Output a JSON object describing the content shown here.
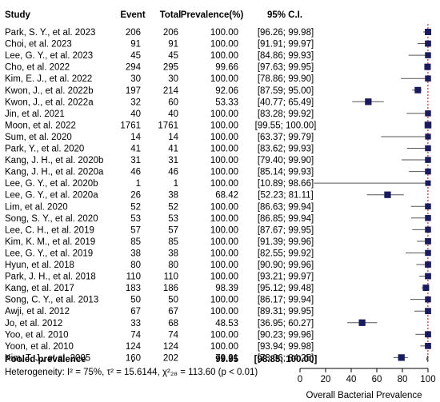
{
  "chart_data": {
    "type": "forest",
    "columns": {
      "study": "Study",
      "event": "Event",
      "total": "Total",
      "prevalence": "Prevalence(%)",
      "ci": "95% C.I."
    },
    "rows": [
      {
        "study": "Park, S. Y., et al. 2023",
        "event": "206",
        "total": "206",
        "prevalence": "100.00",
        "ci": "[96.26; 99.98]",
        "est": 100.0,
        "lo": 96.26,
        "hi": 99.98,
        "size": 0.8
      },
      {
        "study": "Choi, et al. 2023",
        "event": "91",
        "total": "91",
        "prevalence": "100.00",
        "ci": "[91.91; 99.97]",
        "est": 100.0,
        "lo": 91.91,
        "hi": 99.97,
        "size": 0.75
      },
      {
        "study": "Lee, G. Y., et al. 2023",
        "event": "45",
        "total": "45",
        "prevalence": "100.00",
        "ci": "[84.86; 99.93]",
        "est": 100.0,
        "lo": 84.86,
        "hi": 99.93,
        "size": 0.7
      },
      {
        "study": "Cho, et al. 2022",
        "event": "294",
        "total": "295",
        "prevalence": "99.66",
        "ci": "[97.63; 99.95]",
        "est": 99.66,
        "lo": 97.63,
        "hi": 99.95,
        "size": 0.8
      },
      {
        "study": "Kim, E. J., et al. 2022",
        "event": "30",
        "total": "30",
        "prevalence": "100.00",
        "ci": "[78.86; 99.90]",
        "est": 100.0,
        "lo": 78.86,
        "hi": 99.9,
        "size": 0.7
      },
      {
        "study": "Kwon, J., et al. 2022b",
        "event": "197",
        "total": "214",
        "prevalence": "92.06",
        "ci": "[87.59; 95.00]",
        "est": 92.06,
        "lo": 87.59,
        "hi": 95.0,
        "size": 0.8
      },
      {
        "study": "Kwon, J., et al. 2022a",
        "event": "32",
        "total": "60",
        "prevalence": "53.33",
        "ci": "[40.77; 65.49]",
        "est": 53.33,
        "lo": 40.77,
        "hi": 65.49,
        "size": 0.85
      },
      {
        "study": "Jin, et al. 2021",
        "event": "40",
        "total": "40",
        "prevalence": "100.00",
        "ci": "[83.28; 99.92]",
        "est": 100.0,
        "lo": 83.28,
        "hi": 99.92,
        "size": 0.7
      },
      {
        "study": "Moon, et al. 2022",
        "event": "1761",
        "total": "1761",
        "prevalence": "100.00",
        "ci": "[99.55; 100.00]",
        "est": 100.0,
        "lo": 99.55,
        "hi": 100.0,
        "size": 0.9
      },
      {
        "study": "Sum, et al. 2020",
        "event": "14",
        "total": "14",
        "prevalence": "100.00",
        "ci": "[63.37; 99.79]",
        "est": 100.0,
        "lo": 63.37,
        "hi": 99.79,
        "size": 0.65
      },
      {
        "study": "Park, Y., et al. 2020",
        "event": "41",
        "total": "41",
        "prevalence": "100.00",
        "ci": "[83.62; 99.93]",
        "est": 100.0,
        "lo": 83.62,
        "hi": 99.93,
        "size": 0.7
      },
      {
        "study": "Kang, J. H., et al. 2020b",
        "event": "31",
        "total": "31",
        "prevalence": "100.00",
        "ci": "[79.40; 99.90]",
        "est": 100.0,
        "lo": 79.4,
        "hi": 99.9,
        "size": 0.7
      },
      {
        "study": "Kang, J. H., et al. 2020a",
        "event": "46",
        "total": "46",
        "prevalence": "100.00",
        "ci": "[85.14; 99.93]",
        "est": 100.0,
        "lo": 85.14,
        "hi": 99.93,
        "size": 0.7
      },
      {
        "study": "Lee, G. Y., et al. 2020b",
        "event": "1",
        "total": "1",
        "prevalence": "100.00",
        "ci": "[10.89; 98.66]",
        "est": 100.0,
        "lo": 10.89,
        "hi": 98.66,
        "size": 0.6
      },
      {
        "study": "Lee, G. Y., et al. 2020a",
        "event": "26",
        "total": "38",
        "prevalence": "68.42",
        "ci": "[52.23; 81.11]",
        "est": 68.42,
        "lo": 52.23,
        "hi": 81.11,
        "size": 0.85
      },
      {
        "study": "Lim, et al. 2020",
        "event": "52",
        "total": "52",
        "prevalence": "100.00",
        "ci": "[86.63; 99.94]",
        "est": 100.0,
        "lo": 86.63,
        "hi": 99.94,
        "size": 0.7
      },
      {
        "study": "Song, S. Y., et al. 2020",
        "event": "53",
        "total": "53",
        "prevalence": "100.00",
        "ci": "[86.85; 99.94]",
        "est": 100.0,
        "lo": 86.85,
        "hi": 99.94,
        "size": 0.7
      },
      {
        "study": "Lee, C. H., et al. 2019",
        "event": "57",
        "total": "57",
        "prevalence": "100.00",
        "ci": "[87.67; 99.95]",
        "est": 100.0,
        "lo": 87.67,
        "hi": 99.95,
        "size": 0.7
      },
      {
        "study": "Kim, K. M., et al. 2019",
        "event": "85",
        "total": "85",
        "prevalence": "100.00",
        "ci": "[91.39; 99.96]",
        "est": 100.0,
        "lo": 91.39,
        "hi": 99.96,
        "size": 0.75
      },
      {
        "study": "Lee, G. Y., et al. 2019",
        "event": "38",
        "total": "38",
        "prevalence": "100.00",
        "ci": "[82.55; 99.92]",
        "est": 100.0,
        "lo": 82.55,
        "hi": 99.92,
        "size": 0.7
      },
      {
        "study": "Hyun, et al. 2018",
        "event": "80",
        "total": "80",
        "prevalence": "100.00",
        "ci": "[90.90; 99.96]",
        "est": 100.0,
        "lo": 90.9,
        "hi": 99.96,
        "size": 0.75
      },
      {
        "study": "Park, J. H., et al. 2018",
        "event": "110",
        "total": "110",
        "prevalence": "100.00",
        "ci": "[93.21; 99.97]",
        "est": 100.0,
        "lo": 93.21,
        "hi": 99.97,
        "size": 0.75
      },
      {
        "study": "Kang, et al. 2017",
        "event": "183",
        "total": "186",
        "prevalence": "98.39",
        "ci": "[95.12; 99.48]",
        "est": 98.39,
        "lo": 95.12,
        "hi": 99.48,
        "size": 0.8
      },
      {
        "study": "Song, C. Y., et al. 2013",
        "event": "50",
        "total": "50",
        "prevalence": "100.00",
        "ci": "[86.17; 99.94]",
        "est": 100.0,
        "lo": 86.17,
        "hi": 99.94,
        "size": 0.7
      },
      {
        "study": "Awji, et al. 2012",
        "event": "67",
        "total": "67",
        "prevalence": "100.00",
        "ci": "[89.31; 99.95]",
        "est": 100.0,
        "lo": 89.31,
        "hi": 99.95,
        "size": 0.75
      },
      {
        "study": "Jo, et al. 2012",
        "event": "33",
        "total": "68",
        "prevalence": "48.53",
        "ci": "[36.95; 60.27]",
        "est": 48.53,
        "lo": 36.95,
        "hi": 60.27,
        "size": 0.85
      },
      {
        "study": "Yoo, et al. 2010",
        "event": "74",
        "total": "74",
        "prevalence": "100.00",
        "ci": "[90.23; 99.96]",
        "est": 100.0,
        "lo": 90.23,
        "hi": 99.96,
        "size": 0.75
      },
      {
        "study": "Yoon, et al. 2010",
        "event": "124",
        "total": "124",
        "prevalence": "100.00",
        "ci": "[93.94; 99.98]",
        "est": 100.0,
        "lo": 93.94,
        "hi": 99.98,
        "size": 0.75
      },
      {
        "study": "Kim, T. J., et al. 2005",
        "event": "160",
        "total": "202",
        "prevalence": "79.21",
        "ci": "[73.06; 84.25]",
        "est": 79.21,
        "lo": 73.06,
        "hi": 84.25,
        "size": 0.85
      }
    ],
    "pooled": {
      "label": "Pooled prevalence",
      "event": ".",
      "prevalence": "99.95",
      "ci": "[98.85; 100.00]",
      "est": 99.95,
      "lo": 98.85,
      "hi": 100.0
    },
    "heterogeneity": "Heterogeneity: I² = 75%, τ² = 15.6144, χ²₂₈ = 113.60 (p < 0.01)",
    "x_ticks": [
      "0",
      "20",
      "40",
      "60",
      "80",
      "100"
    ],
    "xlim": [
      0,
      100
    ],
    "xlabel": "Overall Bacterial Prevalence",
    "colors": {
      "marker": "#1a1a5e",
      "ref_line": "#cc0000",
      "text": "#000000"
    }
  }
}
